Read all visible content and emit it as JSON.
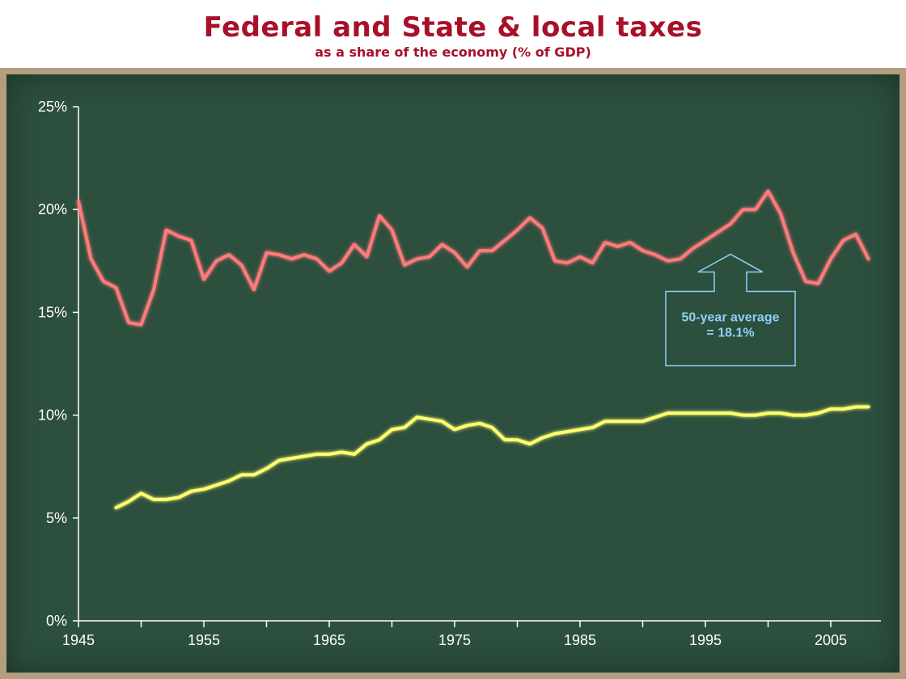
{
  "chart_data": {
    "type": "line",
    "title": "Federal and State & local taxes",
    "subtitle": "as a share of the economy (% of GDP)",
    "xlabel": "",
    "ylabel": "",
    "xlim": [
      1945,
      2009
    ],
    "ylim": [
      0,
      25
    ],
    "x_ticks": [
      1945,
      1955,
      1965,
      1975,
      1985,
      1995,
      2005
    ],
    "x_tick_labels": [
      "1945",
      "1955",
      "1965",
      "1975",
      "1985",
      "1995",
      "2005"
    ],
    "y_ticks": [
      0,
      5,
      10,
      15,
      20,
      25
    ],
    "y_tick_labels": [
      "0%",
      "5%",
      "10%",
      "15%",
      "20%",
      "25%"
    ],
    "grid": false,
    "legend": "none",
    "series": [
      {
        "color": "#ff7a7a",
        "x": [
          1945,
          1946,
          1947,
          1948,
          1949,
          1950,
          1951,
          1952,
          1953,
          1954,
          1955,
          1956,
          1957,
          1958,
          1959,
          1960,
          1961,
          1962,
          1963,
          1964,
          1965,
          1966,
          1967,
          1968,
          1969,
          1970,
          1971,
          1972,
          1973,
          1974,
          1975,
          1976,
          1977,
          1978,
          1979,
          1980,
          1981,
          1982,
          1983,
          1984,
          1985,
          1986,
          1987,
          1988,
          1989,
          1990,
          1991,
          1992,
          1993,
          1994,
          1995,
          1996,
          1997,
          1998,
          1999,
          2000,
          2001,
          2002,
          2003,
          2004,
          2005,
          2006,
          2007,
          2008
        ],
        "values": [
          20.4,
          17.6,
          16.5,
          16.2,
          14.5,
          14.4,
          16.1,
          19.0,
          18.7,
          18.5,
          16.6,
          17.5,
          17.8,
          17.3,
          16.1,
          17.9,
          17.8,
          17.6,
          17.8,
          17.6,
          17.0,
          17.4,
          18.3,
          17.7,
          19.7,
          19.0,
          17.3,
          17.6,
          17.7,
          18.3,
          17.9,
          17.2,
          18.0,
          18.0,
          18.5,
          19.0,
          19.6,
          19.1,
          17.5,
          17.4,
          17.7,
          17.4,
          18.4,
          18.2,
          18.4,
          18.0,
          17.8,
          17.5,
          17.6,
          18.1,
          18.5,
          18.9,
          19.3,
          20.0,
          20.0,
          20.9,
          19.8,
          17.9,
          16.5,
          16.4,
          17.6,
          18.5,
          18.8,
          17.6
        ]
      },
      {
        "color": "#ffff6e",
        "x": [
          1948,
          1949,
          1950,
          1951,
          1952,
          1953,
          1954,
          1955,
          1956,
          1957,
          1958,
          1959,
          1960,
          1961,
          1962,
          1963,
          1964,
          1965,
          1966,
          1967,
          1968,
          1969,
          1970,
          1971,
          1972,
          1973,
          1974,
          1975,
          1976,
          1977,
          1978,
          1979,
          1980,
          1981,
          1982,
          1983,
          1984,
          1985,
          1986,
          1987,
          1988,
          1989,
          1990,
          1991,
          1992,
          1993,
          1994,
          1995,
          1996,
          1997,
          1998,
          1999,
          2000,
          2001,
          2002,
          2003,
          2004,
          2005,
          2006,
          2007,
          2008
        ],
        "values": [
          5.5,
          5.8,
          6.2,
          5.9,
          5.9,
          6.0,
          6.3,
          6.4,
          6.6,
          6.8,
          7.1,
          7.1,
          7.4,
          7.8,
          7.9,
          8.0,
          8.1,
          8.1,
          8.2,
          8.1,
          8.6,
          8.8,
          9.3,
          9.4,
          9.9,
          9.8,
          9.7,
          9.3,
          9.5,
          9.6,
          9.4,
          8.8,
          8.8,
          8.6,
          8.9,
          9.1,
          9.2,
          9.3,
          9.4,
          9.7,
          9.7,
          9.7,
          9.7,
          9.9,
          10.1,
          10.1,
          10.1,
          10.1,
          10.1,
          10.1,
          10.0,
          10.0,
          10.1,
          10.1,
          10.0,
          10.0,
          10.1,
          10.3,
          10.3,
          10.4,
          10.4
        ]
      }
    ],
    "reference_line": {
      "value": 18.1,
      "color": "#8fd0f5"
    },
    "annotation": {
      "line1": "50-year average",
      "line2": "= 18.1%",
      "x": 1997
    }
  }
}
